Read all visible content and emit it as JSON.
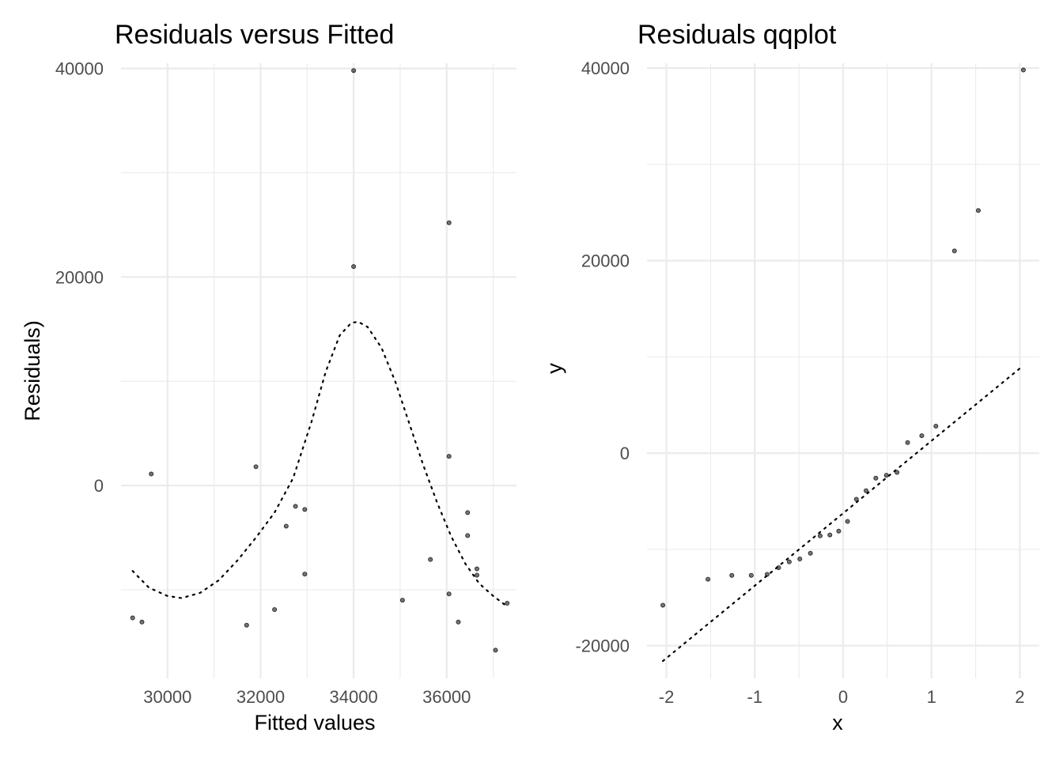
{
  "chart_data": [
    {
      "type": "scatter",
      "title": "Residuals versus Fitted",
      "xlabel": "Fitted values",
      "ylabel": "Residuals)",
      "xlim": [
        29000,
        37500
      ],
      "ylim": [
        -18500,
        40500
      ],
      "x_ticks": [
        30000,
        32000,
        34000,
        36000
      ],
      "y_ticks": [
        0,
        20000,
        40000
      ],
      "grid": true,
      "points": [
        {
          "x": 29250,
          "y": -12700
        },
        {
          "x": 29450,
          "y": -13100
        },
        {
          "x": 29650,
          "y": 1100
        },
        {
          "x": 31700,
          "y": -13400
        },
        {
          "x": 31900,
          "y": 1800
        },
        {
          "x": 32300,
          "y": -11900
        },
        {
          "x": 32550,
          "y": -3900
        },
        {
          "x": 32750,
          "y": -2000
        },
        {
          "x": 32950,
          "y": -2300
        },
        {
          "x": 32950,
          "y": -8500
        },
        {
          "x": 34000,
          "y": 39800
        },
        {
          "x": 34000,
          "y": 21000
        },
        {
          "x": 35050,
          "y": -11000
        },
        {
          "x": 35650,
          "y": -7100
        },
        {
          "x": 36050,
          "y": 25200
        },
        {
          "x": 36050,
          "y": 2800
        },
        {
          "x": 36050,
          "y": -10400
        },
        {
          "x": 36250,
          "y": -13100
        },
        {
          "x": 36450,
          "y": -2600
        },
        {
          "x": 36450,
          "y": -4800
        },
        {
          "x": 36650,
          "y": -8000
        },
        {
          "x": 36650,
          "y": -8600
        },
        {
          "x": 37050,
          "y": -15800
        },
        {
          "x": 37300,
          "y": -11300
        }
      ],
      "smooth_line": {
        "x": [
          29250,
          29600,
          30000,
          30300,
          30700,
          31100,
          31500,
          31900,
          32300,
          32700,
          33100,
          33400,
          33700,
          33950,
          34100,
          34300,
          34600,
          34900,
          35200,
          35500,
          35800,
          36100,
          36400,
          36700,
          37000,
          37300
        ],
        "y": [
          -8200,
          -9800,
          -10600,
          -10800,
          -10300,
          -9100,
          -7200,
          -5000,
          -2600,
          700,
          6200,
          10900,
          14400,
          15600,
          15700,
          15200,
          13200,
          9900,
          5900,
          1900,
          -1700,
          -4900,
          -7500,
          -9400,
          -10600,
          -11600
        ]
      }
    },
    {
      "type": "scatter",
      "title": "Residuals qqplot",
      "xlabel": "x",
      "ylabel": "y",
      "xlim": [
        -2.22,
        2.22
      ],
      "ylim": [
        -23400,
        40500
      ],
      "x_ticks": [
        -2,
        -1,
        0,
        1,
        2
      ],
      "y_ticks": [
        -20000,
        0,
        20000,
        40000
      ],
      "grid": true,
      "points": [
        {
          "x": -2.04,
          "y": -15800
        },
        {
          "x": -1.53,
          "y": -13100
        },
        {
          "x": -1.26,
          "y": -12700
        },
        {
          "x": -1.04,
          "y": -12700
        },
        {
          "x": -0.86,
          "y": -12600
        },
        {
          "x": -0.73,
          "y": -11900
        },
        {
          "x": -0.61,
          "y": -11300
        },
        {
          "x": -0.49,
          "y": -11000
        },
        {
          "x": -0.37,
          "y": -10400
        },
        {
          "x": -0.26,
          "y": -8600
        },
        {
          "x": -0.15,
          "y": -8500
        },
        {
          "x": -0.05,
          "y": -8100
        },
        {
          "x": 0.05,
          "y": -7100
        },
        {
          "x": 0.15,
          "y": -4800
        },
        {
          "x": 0.26,
          "y": -3900
        },
        {
          "x": 0.37,
          "y": -2600
        },
        {
          "x": 0.49,
          "y": -2300
        },
        {
          "x": 0.61,
          "y": -2000
        },
        {
          "x": 0.73,
          "y": 1100
        },
        {
          "x": 0.89,
          "y": 1800
        },
        {
          "x": 1.05,
          "y": 2800
        },
        {
          "x": 1.26,
          "y": 21000
        },
        {
          "x": 1.53,
          "y": 25200
        },
        {
          "x": 2.04,
          "y": 39800
        }
      ],
      "ref_line": {
        "x": [
          -2.04,
          2.04
        ],
        "y": [
          -21600,
          9100
        ]
      }
    }
  ]
}
